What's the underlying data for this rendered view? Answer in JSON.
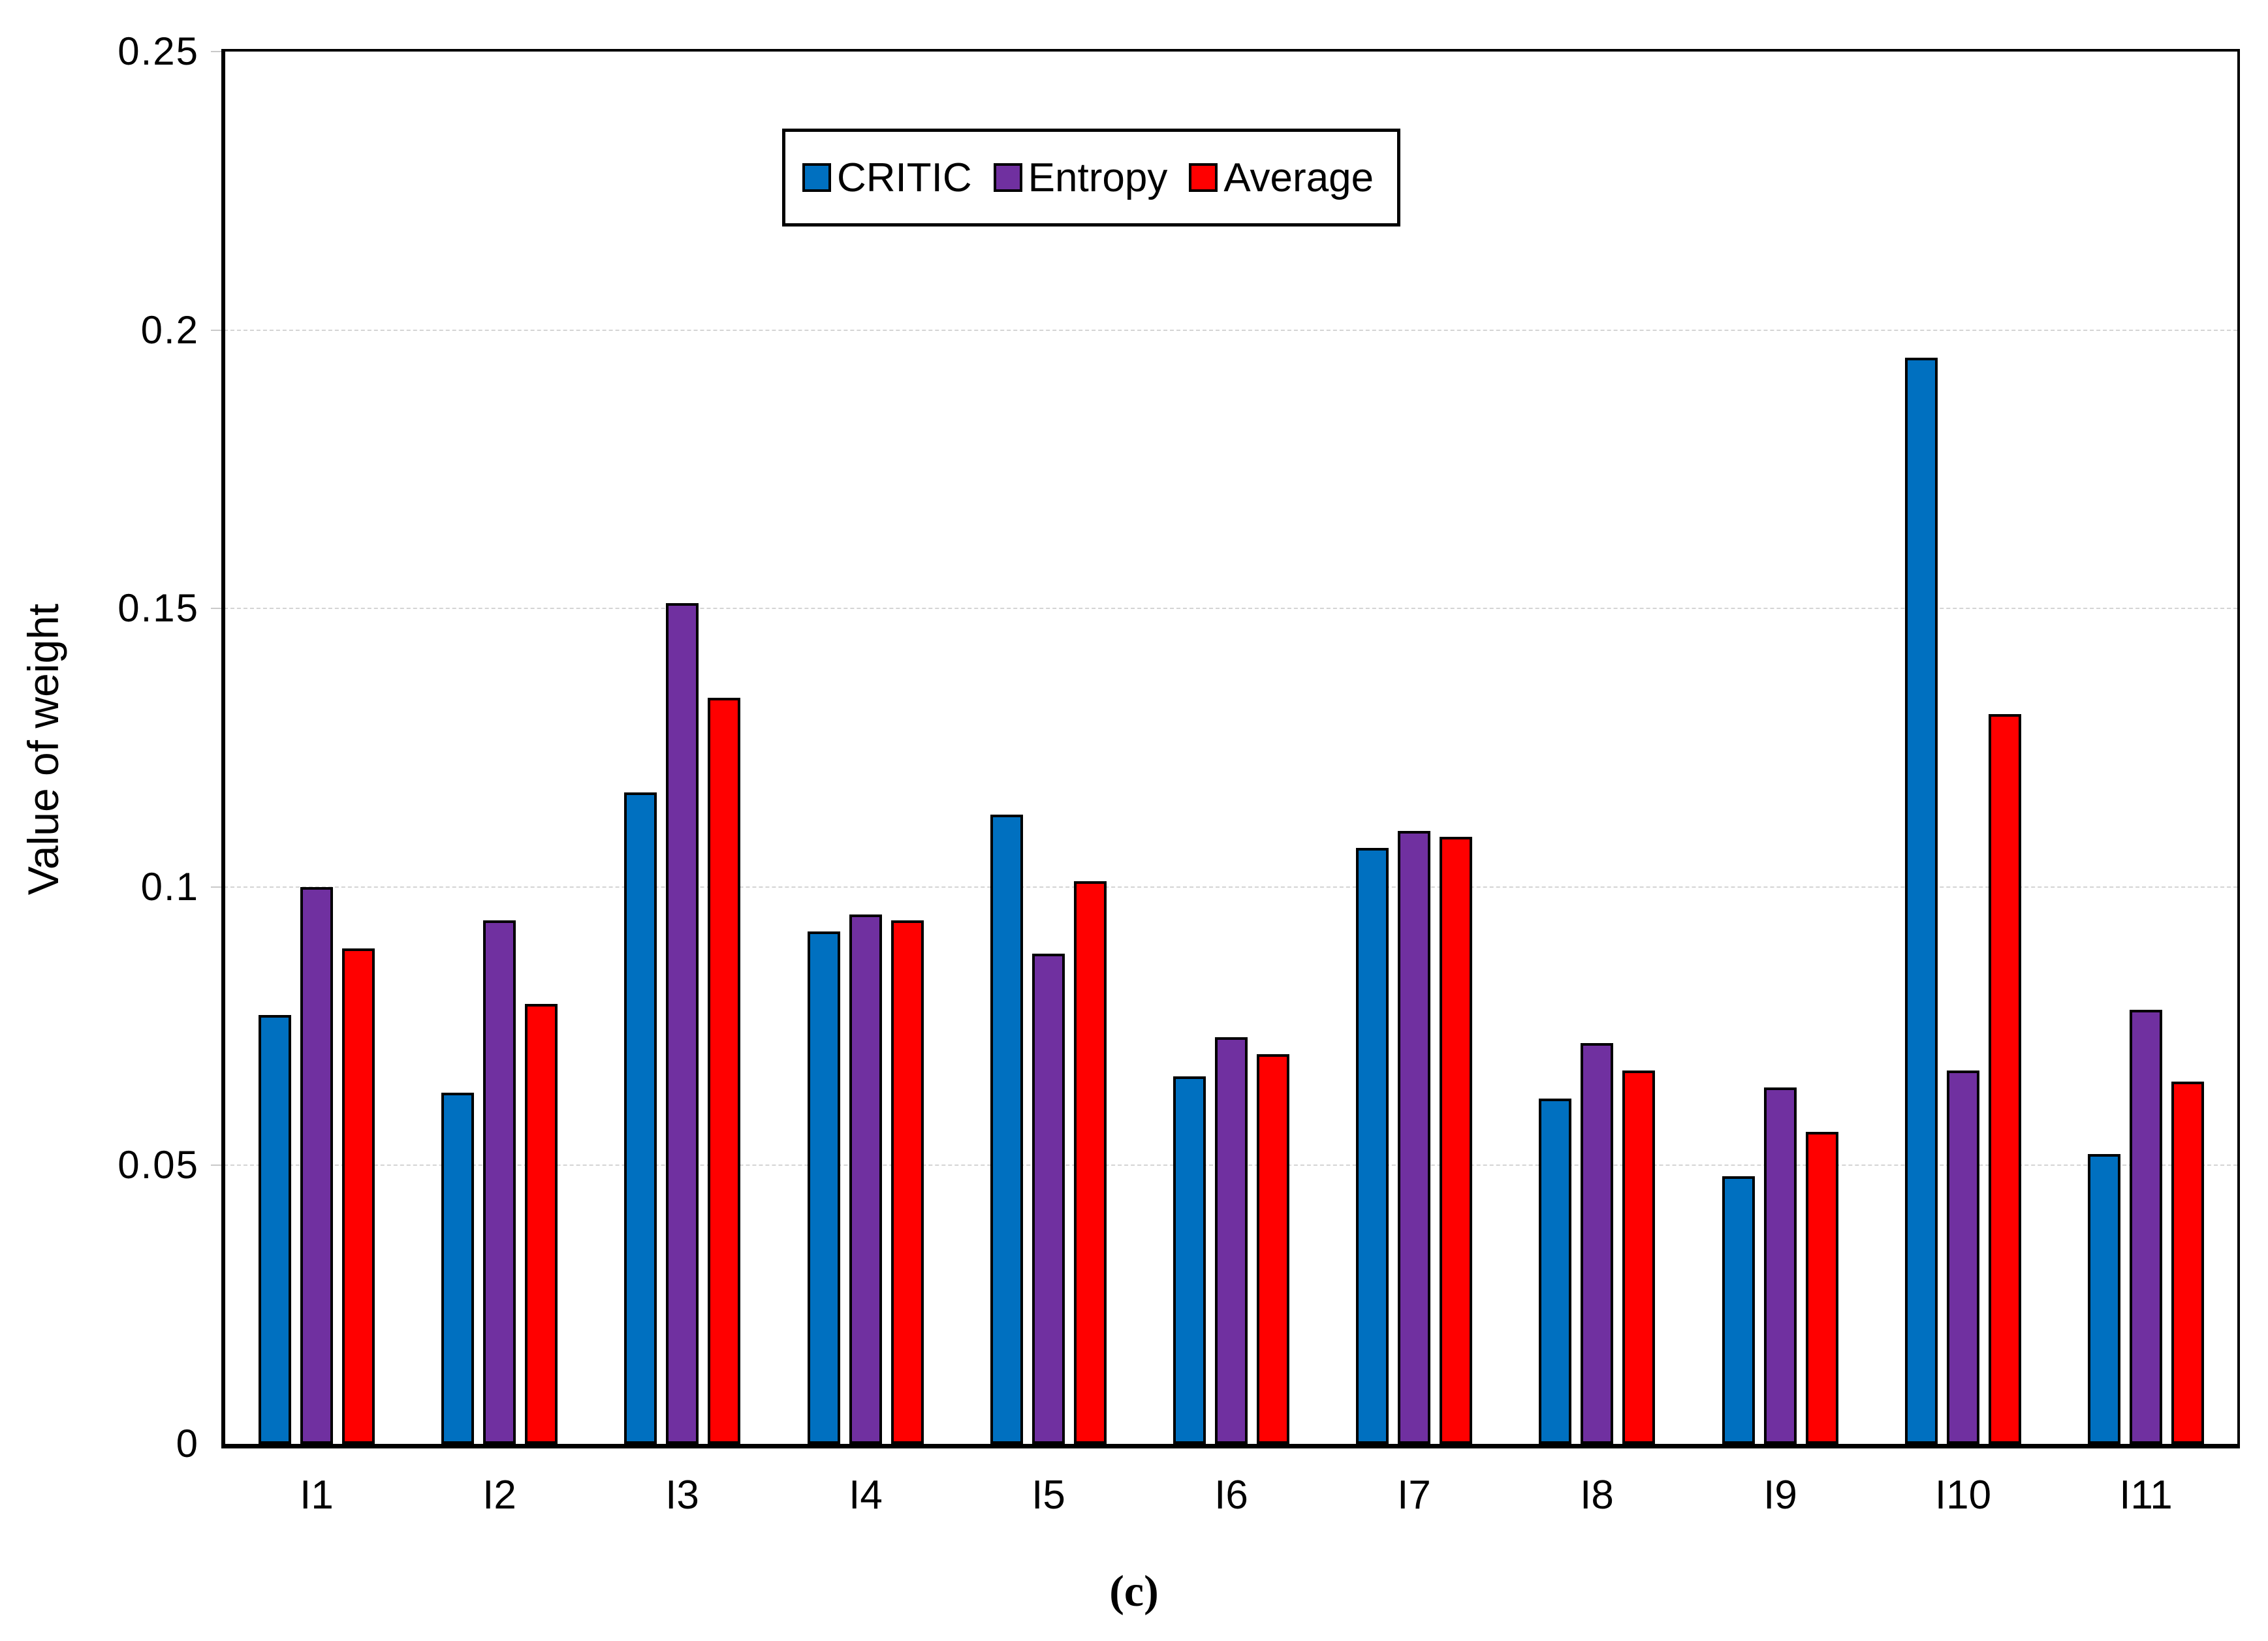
{
  "figure": {
    "caption": "(c)"
  },
  "colors": {
    "critic": "#0070C0",
    "entropy": "#7030A0",
    "average": "#FF0000",
    "gridline": "#D4D4D4",
    "axis": "#000000",
    "background": "#FFFFFF"
  },
  "chart_data": {
    "type": "bar",
    "title": "",
    "xlabel": "",
    "ylabel": "Value of weight",
    "ylim": [
      0,
      0.25
    ],
    "yticks": [
      0,
      0.05,
      0.1,
      0.15,
      0.2,
      0.25
    ],
    "ytick_labels": [
      "0",
      "0.05",
      "0.1",
      "0.15",
      "0.2",
      "0.25"
    ],
    "grid": true,
    "legend_position": "top-center-inside",
    "categories": [
      "I1",
      "I2",
      "I3",
      "I4",
      "I5",
      "I6",
      "I7",
      "I8",
      "I9",
      "I10",
      "I11"
    ],
    "series": [
      {
        "name": "CRITIC",
        "color": "#0070C0",
        "values": [
          0.077,
          0.063,
          0.117,
          0.092,
          0.113,
          0.066,
          0.107,
          0.062,
          0.048,
          0.195,
          0.052
        ]
      },
      {
        "name": "Entropy",
        "color": "#7030A0",
        "values": [
          0.1,
          0.094,
          0.151,
          0.095,
          0.088,
          0.073,
          0.11,
          0.072,
          0.064,
          0.067,
          0.078
        ]
      },
      {
        "name": "Average",
        "color": "#FF0000",
        "values": [
          0.089,
          0.079,
          0.134,
          0.094,
          0.101,
          0.07,
          0.109,
          0.067,
          0.056,
          0.131,
          0.065
        ]
      }
    ]
  }
}
